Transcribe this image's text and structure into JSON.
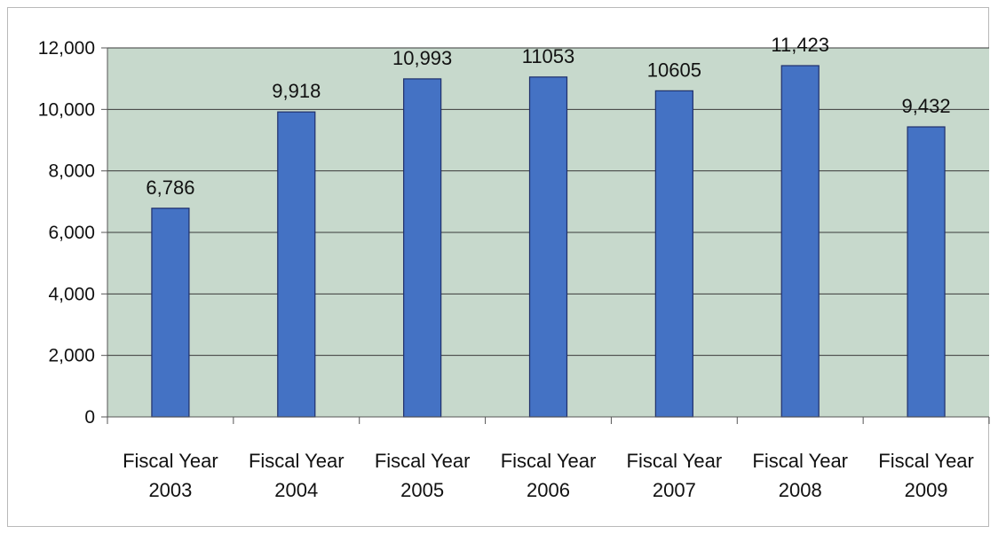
{
  "chart_data": {
    "type": "bar",
    "categories": [
      [
        "Fiscal Year",
        "2003"
      ],
      [
        "Fiscal Year",
        "2004"
      ],
      [
        "Fiscal Year",
        "2005"
      ],
      [
        "Fiscal Year",
        "2006"
      ],
      [
        "Fiscal Year",
        "2007"
      ],
      [
        "Fiscal Year",
        "2008"
      ],
      [
        "Fiscal Year",
        "2009"
      ]
    ],
    "values": [
      6786,
      9918,
      10993,
      11053,
      10605,
      11423,
      9432
    ],
    "data_labels": [
      "6,786",
      "9,918",
      "10,993",
      "11053",
      "10605",
      "11,423",
      "9,432"
    ],
    "ylim": [
      0,
      12000
    ],
    "y_ticks": [
      0,
      2000,
      4000,
      6000,
      8000,
      10000,
      12000
    ],
    "y_tick_labels": [
      "0",
      "2,000",
      "4,000",
      "6,000",
      "8,000",
      "10,000",
      "12,000"
    ],
    "grid": true,
    "title": "",
    "xlabel": "",
    "ylabel": "",
    "colors": {
      "plot_background": "#c7d9cc",
      "bar_fill": "#4472c4",
      "bar_stroke": "#1f2f6b",
      "gridline": "#3a3a3a",
      "axis": "#555555"
    }
  }
}
